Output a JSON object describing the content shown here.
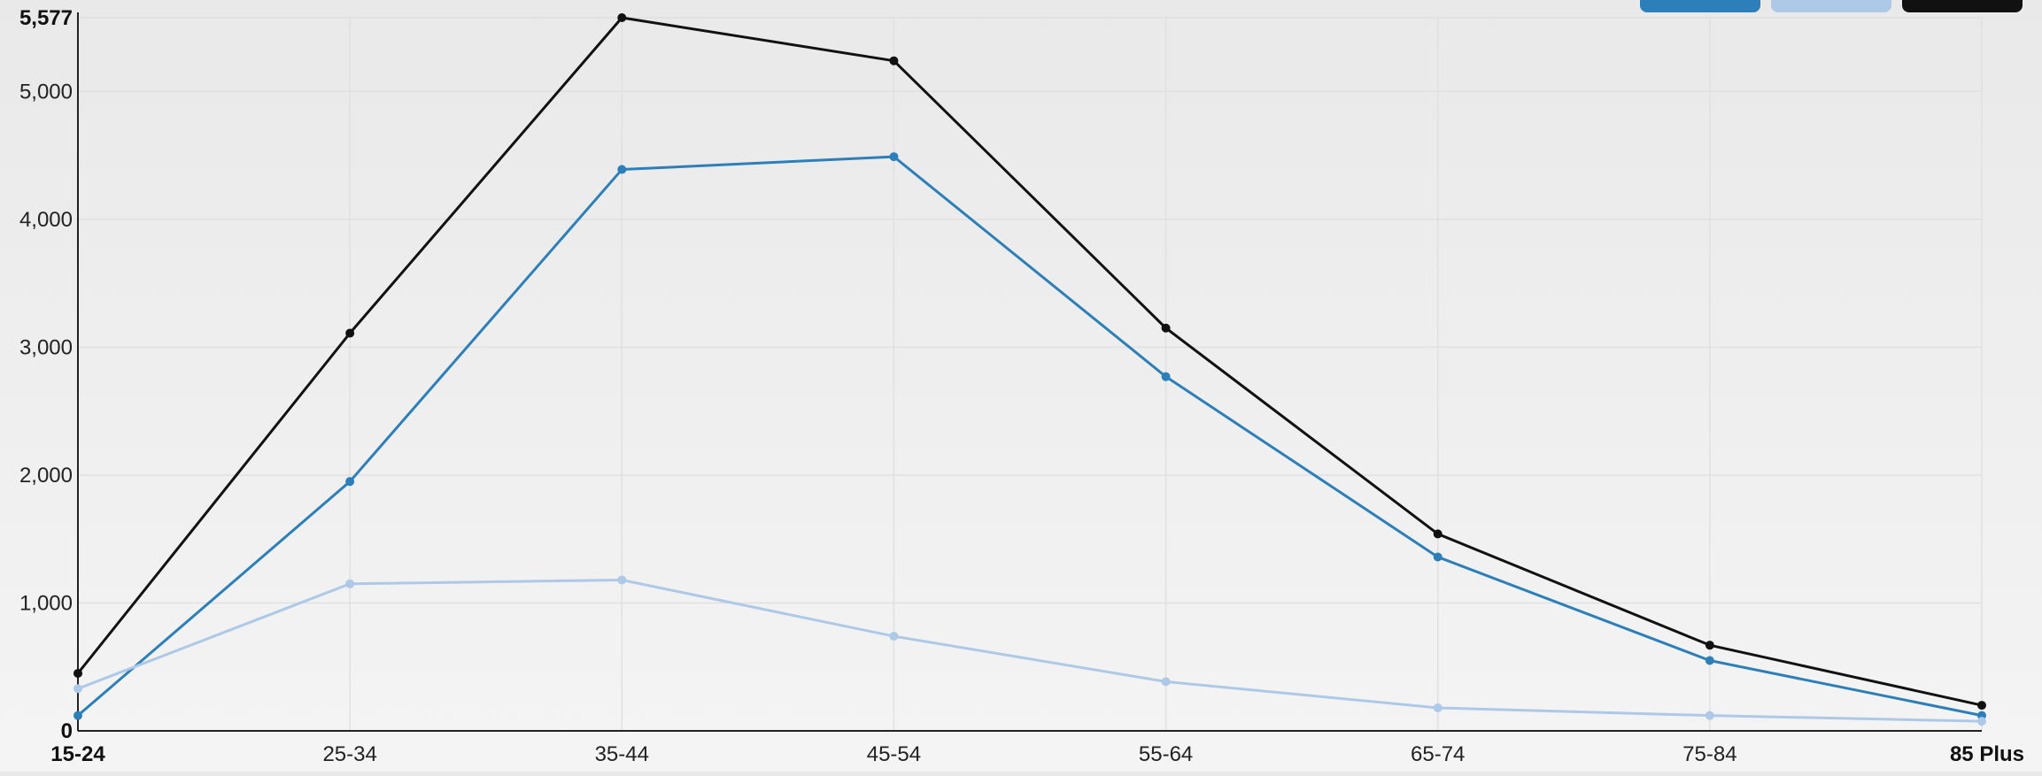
{
  "chart_data": {
    "type": "line",
    "title": "",
    "xlabel": "",
    "ylabel": "",
    "categories": [
      "15-24",
      "25-34",
      "35-44",
      "45-54",
      "55-64",
      "65-74",
      "75-84",
      "85 Plus"
    ],
    "series": [
      {
        "color": "#2c7fb8",
        "values": [
          120,
          1950,
          4390,
          4490,
          2770,
          1360,
          550,
          120
        ]
      },
      {
        "color": "#aec9e8",
        "values": [
          330,
          1150,
          1180,
          740,
          385,
          180,
          120,
          75
        ]
      },
      {
        "color": "#111111",
        "values": [
          450,
          3110,
          5577,
          5240,
          3150,
          1540,
          670,
          200
        ]
      }
    ],
    "ylim": [
      0,
      5577
    ],
    "yticks": [
      {
        "value": 0,
        "label": "0",
        "strong": true
      },
      {
        "value": 1000,
        "label": "1,000",
        "strong": false
      },
      {
        "value": 2000,
        "label": "2,000",
        "strong": false
      },
      {
        "value": 3000,
        "label": "3,000",
        "strong": false
      },
      {
        "value": 4000,
        "label": "4,000",
        "strong": false
      },
      {
        "value": 5000,
        "label": "5,000",
        "strong": false
      },
      {
        "value": 5577,
        "label": "5,577",
        "strong": true
      }
    ],
    "xtick_strong": [
      true,
      false,
      false,
      false,
      false,
      false,
      false,
      true
    ],
    "grid": true,
    "legend_position": "top-right"
  }
}
